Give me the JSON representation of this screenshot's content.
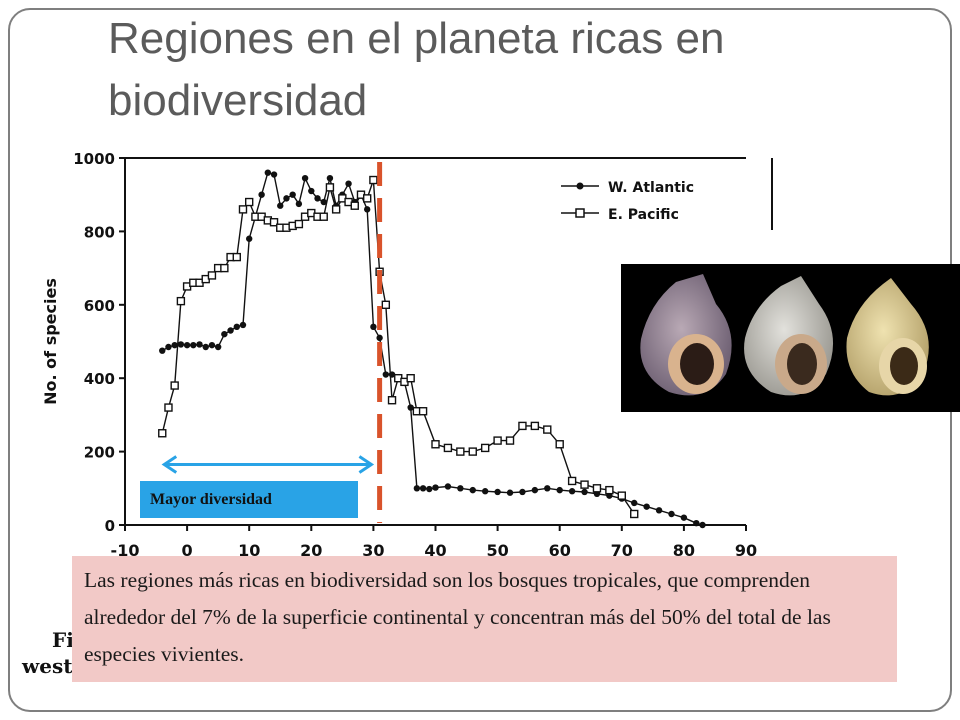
{
  "slide": {
    "title": "Regiones en el planeta ricas en biodiversidad",
    "diversity_label": "Mayor diversidad",
    "caption": "Las regiones más ricas en biodiversidad son los bosques tropicales, que comprenden alrededor del 7% de la superficie continental y concentran más del 50% del total de las especies vivientes.",
    "fragment_left_1": "Fi",
    "fragment_left_2": "west"
  },
  "colors": {
    "title": "#5b5b5b",
    "caption_bg": "#f2c9c7",
    "label_bg": "#29a3e6",
    "marker_line": "#d9532b",
    "range_arrow": "#29a3e6",
    "frame": "#7f7f7f"
  },
  "chart_data": {
    "type": "line",
    "title": "",
    "xlabel": "",
    "ylabel": "No. of species",
    "xlim": [
      -10,
      90
    ],
    "ylim": [
      0,
      1000
    ],
    "x_ticks": [
      -10,
      0,
      10,
      20,
      30,
      40,
      50,
      60,
      70,
      80,
      90
    ],
    "y_ticks": [
      0,
      200,
      400,
      600,
      800,
      1000
    ],
    "legend_position": "top-right",
    "series": [
      {
        "name": "W. Atlantic",
        "marker": "filled-circle",
        "x": [
          -4,
          -3,
          -2,
          -1,
          0,
          1,
          2,
          3,
          4,
          5,
          6,
          7,
          8,
          9,
          10,
          11,
          12,
          13,
          14,
          15,
          16,
          17,
          18,
          19,
          20,
          21,
          22,
          23,
          24,
          25,
          26,
          27,
          28,
          29,
          30,
          31,
          32,
          33,
          34,
          35,
          36,
          37,
          38,
          39,
          40,
          42,
          44,
          46,
          48,
          50,
          52,
          54,
          56,
          58,
          60,
          62,
          64,
          66,
          68,
          70,
          72,
          74,
          76,
          78,
          80,
          82,
          83
        ],
        "y": [
          475,
          485,
          490,
          492,
          490,
          490,
          492,
          485,
          490,
          485,
          520,
          530,
          540,
          545,
          780,
          840,
          900,
          960,
          955,
          870,
          890,
          900,
          875,
          945,
          910,
          890,
          880,
          945,
          870,
          900,
          930,
          880,
          900,
          860,
          540,
          510,
          410,
          410,
          400,
          390,
          320,
          100,
          100,
          98,
          102,
          105,
          100,
          95,
          92,
          90,
          88,
          90,
          95,
          100,
          95,
          92,
          90,
          85,
          80,
          72,
          60,
          50,
          40,
          30,
          20,
          5,
          0
        ]
      },
      {
        "name": "E. Pacific",
        "marker": "open-square",
        "x": [
          -4,
          -3,
          -2,
          -1,
          0,
          1,
          2,
          3,
          4,
          5,
          6,
          7,
          8,
          9,
          10,
          11,
          12,
          13,
          14,
          15,
          16,
          17,
          18,
          19,
          20,
          21,
          22,
          23,
          24,
          25,
          26,
          27,
          28,
          29,
          30,
          31,
          32,
          33,
          34,
          35,
          36,
          37,
          38,
          40,
          42,
          44,
          46,
          48,
          50,
          52,
          54,
          56,
          58,
          60,
          62,
          64,
          66,
          68,
          70,
          72
        ],
        "y": [
          250,
          320,
          380,
          610,
          650,
          660,
          660,
          670,
          680,
          700,
          700,
          730,
          730,
          860,
          880,
          840,
          840,
          830,
          825,
          810,
          810,
          815,
          820,
          840,
          850,
          840,
          840,
          920,
          860,
          890,
          880,
          870,
          900,
          890,
          940,
          690,
          600,
          340,
          400,
          390,
          400,
          310,
          310,
          220,
          210,
          200,
          200,
          210,
          230,
          230,
          270,
          270,
          260,
          220,
          120,
          110,
          100,
          95,
          80,
          30
        ]
      }
    ],
    "annotations": [
      {
        "type": "vertical-dashed-line",
        "x": 31,
        "color": "#d9532b"
      },
      {
        "type": "double-arrow",
        "x_start": -4,
        "x_end": 30,
        "y": 165,
        "color": "#29a3e6",
        "label": "Mayor diversidad"
      }
    ]
  }
}
